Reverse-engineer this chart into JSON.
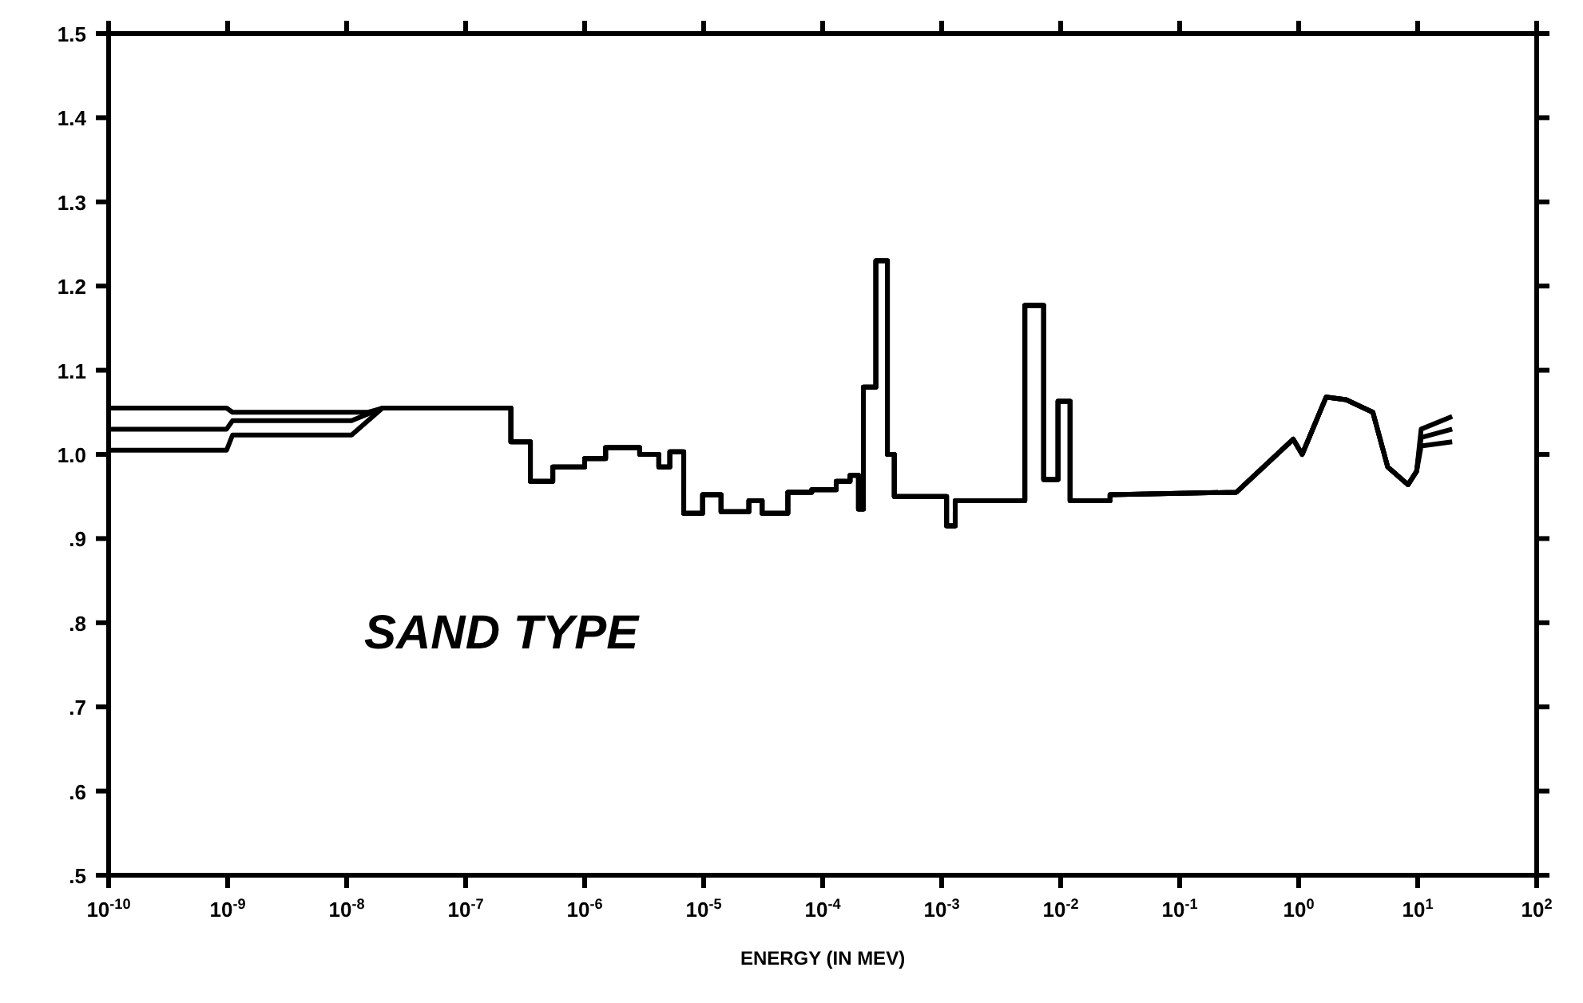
{
  "chart_data": {
    "type": "line",
    "xlabel": "ENERGY (IN MEV)",
    "annotations": [
      "SAND TYPE"
    ],
    "log": "x",
    "xlim": [
      1e-10,
      100
    ],
    "ylim": [
      0.5,
      1.5
    ],
    "xticks": [
      {
        "value": 1e-10,
        "label": "10$^{-10}$"
      },
      {
        "value": 1e-09,
        "label": "10$^{-9}$"
      },
      {
        "value": 1e-08,
        "label": "10$^{-8}$"
      },
      {
        "value": 1e-07,
        "label": "10$^{-7}$"
      },
      {
        "value": 1e-06,
        "label": "10$^{-6}$"
      },
      {
        "value": 1e-05,
        "label": "10$^{-5}$"
      },
      {
        "value": 0.0001,
        "label": "10$^{-4}$"
      },
      {
        "value": 0.001,
        "label": "10$^{-3}$"
      },
      {
        "value": 0.01,
        "label": "10$^{-2}$"
      },
      {
        "value": 0.1,
        "label": "10$^{-1}$"
      },
      {
        "value": 1,
        "label": "10$^{0}$"
      },
      {
        "value": 10,
        "label": "10$^{1}$"
      },
      {
        "value": 100,
        "label": "10$^{2}$"
      }
    ],
    "yticks": [
      {
        "value": 0.5,
        "label": ".5"
      },
      {
        "value": 0.6,
        "label": ".6"
      },
      {
        "value": 0.7,
        "label": ".7"
      },
      {
        "value": 0.8,
        "label": ".8"
      },
      {
        "value": 0.9,
        "label": ".9"
      },
      {
        "value": 1,
        "label": "1.0"
      },
      1.1,
      1.2,
      1.3,
      1.4,
      1.5
    ],
    "series": [
      {
        "color": "#000000",
        "x": [
          1e-10,
          9.8e-10,
          1.1e-09,
          1.5e-08,
          2e-08,
          2.4e-07,
          2.4e-07,
          3.5e-07,
          3.5e-07,
          5.4e-07,
          5.4e-07,
          1e-06,
          1e-06,
          1.5e-06,
          1.5e-06,
          2.9e-06,
          2.9e-06,
          4.2e-06,
          4.2e-06,
          5.2e-06,
          5.2e-06,
          6.8e-06,
          6.8e-06,
          9.8e-06,
          9.8e-06,
          1.4e-05,
          1.4e-05,
          2.4e-05,
          2.4e-05,
          3.1e-05,
          3.1e-05,
          5.1e-05,
          5.1e-05,
          8.1e-05,
          8.1e-05,
          0.00013,
          0.00013,
          0.00017,
          0.00017,
          0.0002,
          0.0002,
          0.00022,
          0.00022,
          0.00028,
          0.00028,
          0.00035,
          0.00035,
          0.0004,
          0.0004,
          0.0011,
          0.0011,
          0.0013,
          0.0013,
          0.005,
          0.005,
          0.0072,
          0.0072,
          0.0095,
          0.0095,
          0.012,
          0.012,
          0.026,
          0.026,
          0.3,
          0.9,
          1.07,
          1.7,
          2.5,
          4.2,
          5.6,
          8.3,
          9.8,
          10.7,
          19.5
        ],
        "values": [
          1.055,
          1.055,
          1.05,
          1.05,
          1.055,
          1.055,
          1.015,
          1.015,
          0.968,
          0.968,
          0.985,
          0.985,
          0.995,
          0.995,
          1.008,
          1.008,
          1.0,
          1.0,
          0.985,
          0.985,
          1.003,
          1.003,
          0.93,
          0.93,
          0.952,
          0.952,
          0.932,
          0.932,
          0.945,
          0.945,
          0.93,
          0.93,
          0.955,
          0.955,
          0.958,
          0.958,
          0.968,
          0.968,
          0.975,
          0.975,
          0.935,
          0.935,
          1.08,
          1.08,
          1.23,
          1.23,
          1.0,
          1.0,
          0.95,
          0.95,
          0.915,
          0.915,
          0.945,
          0.945,
          1.177,
          1.177,
          0.97,
          0.97,
          1.063,
          1.063,
          0.945,
          0.945,
          0.952,
          0.955,
          1.018,
          1.0,
          1.068,
          1.065,
          1.05,
          0.985,
          0.964,
          0.98,
          1.03,
          1.045
        ]
      },
      {
        "color": "#000000",
        "x": [
          1e-10,
          9.8e-10,
          1.1e-09,
          1.1e-08,
          2e-08,
          2.4e-07,
          2.4e-07,
          3.5e-07,
          3.5e-07,
          5.4e-07,
          5.4e-07,
          1e-06,
          1e-06,
          1.5e-06,
          1.5e-06,
          2.9e-06,
          2.9e-06,
          4.2e-06,
          4.2e-06,
          5.2e-06,
          5.2e-06,
          6.8e-06,
          6.8e-06,
          9.8e-06,
          9.8e-06,
          1.4e-05,
          1.4e-05,
          2.4e-05,
          2.4e-05,
          3.1e-05,
          3.1e-05,
          5.1e-05,
          5.1e-05,
          8.1e-05,
          8.1e-05,
          0.00013,
          0.00013,
          0.00017,
          0.00017,
          0.0002,
          0.0002,
          0.00022,
          0.00022,
          0.00028,
          0.00028,
          0.00035,
          0.00035,
          0.0004,
          0.0004,
          0.0011,
          0.0011,
          0.0013,
          0.0013,
          0.005,
          0.005,
          0.0072,
          0.0072,
          0.0095,
          0.0095,
          0.012,
          0.012,
          0.026,
          0.026,
          0.3,
          0.9,
          1.07,
          1.7,
          2.5,
          4.2,
          5.6,
          8.3,
          9.8,
          10.7,
          19.5
        ],
        "values": [
          1.03,
          1.03,
          1.04,
          1.04,
          1.055,
          1.055,
          1.015,
          1.015,
          0.968,
          0.968,
          0.985,
          0.985,
          0.995,
          0.995,
          1.008,
          1.008,
          1.0,
          1.0,
          0.985,
          0.985,
          1.003,
          1.003,
          0.93,
          0.93,
          0.952,
          0.952,
          0.932,
          0.932,
          0.945,
          0.945,
          0.93,
          0.93,
          0.955,
          0.955,
          0.958,
          0.958,
          0.968,
          0.968,
          0.975,
          0.975,
          0.935,
          0.935,
          1.08,
          1.08,
          1.23,
          1.23,
          1.0,
          1.0,
          0.95,
          0.95,
          0.915,
          0.915,
          0.945,
          0.945,
          1.177,
          1.177,
          0.97,
          0.97,
          1.063,
          1.063,
          0.945,
          0.945,
          0.952,
          0.955,
          1.018,
          1.0,
          1.068,
          1.065,
          1.05,
          0.985,
          0.964,
          0.98,
          1.02,
          1.03
        ]
      },
      {
        "color": "#000000",
        "x": [
          1e-10,
          9.8e-10,
          1.1e-09,
          1.1e-08,
          2e-08,
          2.4e-07,
          2.4e-07,
          3.5e-07,
          3.5e-07,
          5.4e-07,
          5.4e-07,
          1e-06,
          1e-06,
          1.5e-06,
          1.5e-06,
          2.9e-06,
          2.9e-06,
          4.2e-06,
          4.2e-06,
          5.2e-06,
          5.2e-06,
          6.8e-06,
          6.8e-06,
          9.8e-06,
          9.8e-06,
          1.4e-05,
          1.4e-05,
          2.4e-05,
          2.4e-05,
          3.1e-05,
          3.1e-05,
          5.1e-05,
          5.1e-05,
          8.1e-05,
          8.1e-05,
          0.00013,
          0.00013,
          0.00017,
          0.00017,
          0.0002,
          0.0002,
          0.00022,
          0.00022,
          0.00028,
          0.00028,
          0.00035,
          0.00035,
          0.0004,
          0.0004,
          0.0011,
          0.0011,
          0.0013,
          0.0013,
          0.005,
          0.005,
          0.0072,
          0.0072,
          0.0095,
          0.0095,
          0.012,
          0.012,
          0.026,
          0.026,
          0.3,
          0.9,
          1.07,
          1.7,
          2.5,
          4.2,
          5.6,
          8.3,
          9.8,
          10.7,
          19.5
        ],
        "values": [
          1.005,
          1.005,
          1.023,
          1.023,
          1.055,
          1.055,
          1.015,
          1.015,
          0.968,
          0.968,
          0.985,
          0.985,
          0.995,
          0.995,
          1.008,
          1.008,
          1.0,
          1.0,
          0.985,
          0.985,
          1.003,
          1.003,
          0.93,
          0.93,
          0.952,
          0.952,
          0.932,
          0.932,
          0.945,
          0.945,
          0.93,
          0.93,
          0.955,
          0.955,
          0.958,
          0.958,
          0.968,
          0.968,
          0.975,
          0.975,
          0.935,
          0.935,
          1.08,
          1.08,
          1.23,
          1.23,
          1.0,
          1.0,
          0.95,
          0.95,
          0.915,
          0.915,
          0.945,
          0.945,
          1.177,
          1.177,
          0.97,
          0.97,
          1.063,
          1.063,
          0.945,
          0.945,
          0.952,
          0.955,
          1.018,
          1.0,
          1.068,
          1.065,
          1.05,
          0.985,
          0.964,
          0.98,
          1.01,
          1.015
        ]
      }
    ]
  }
}
